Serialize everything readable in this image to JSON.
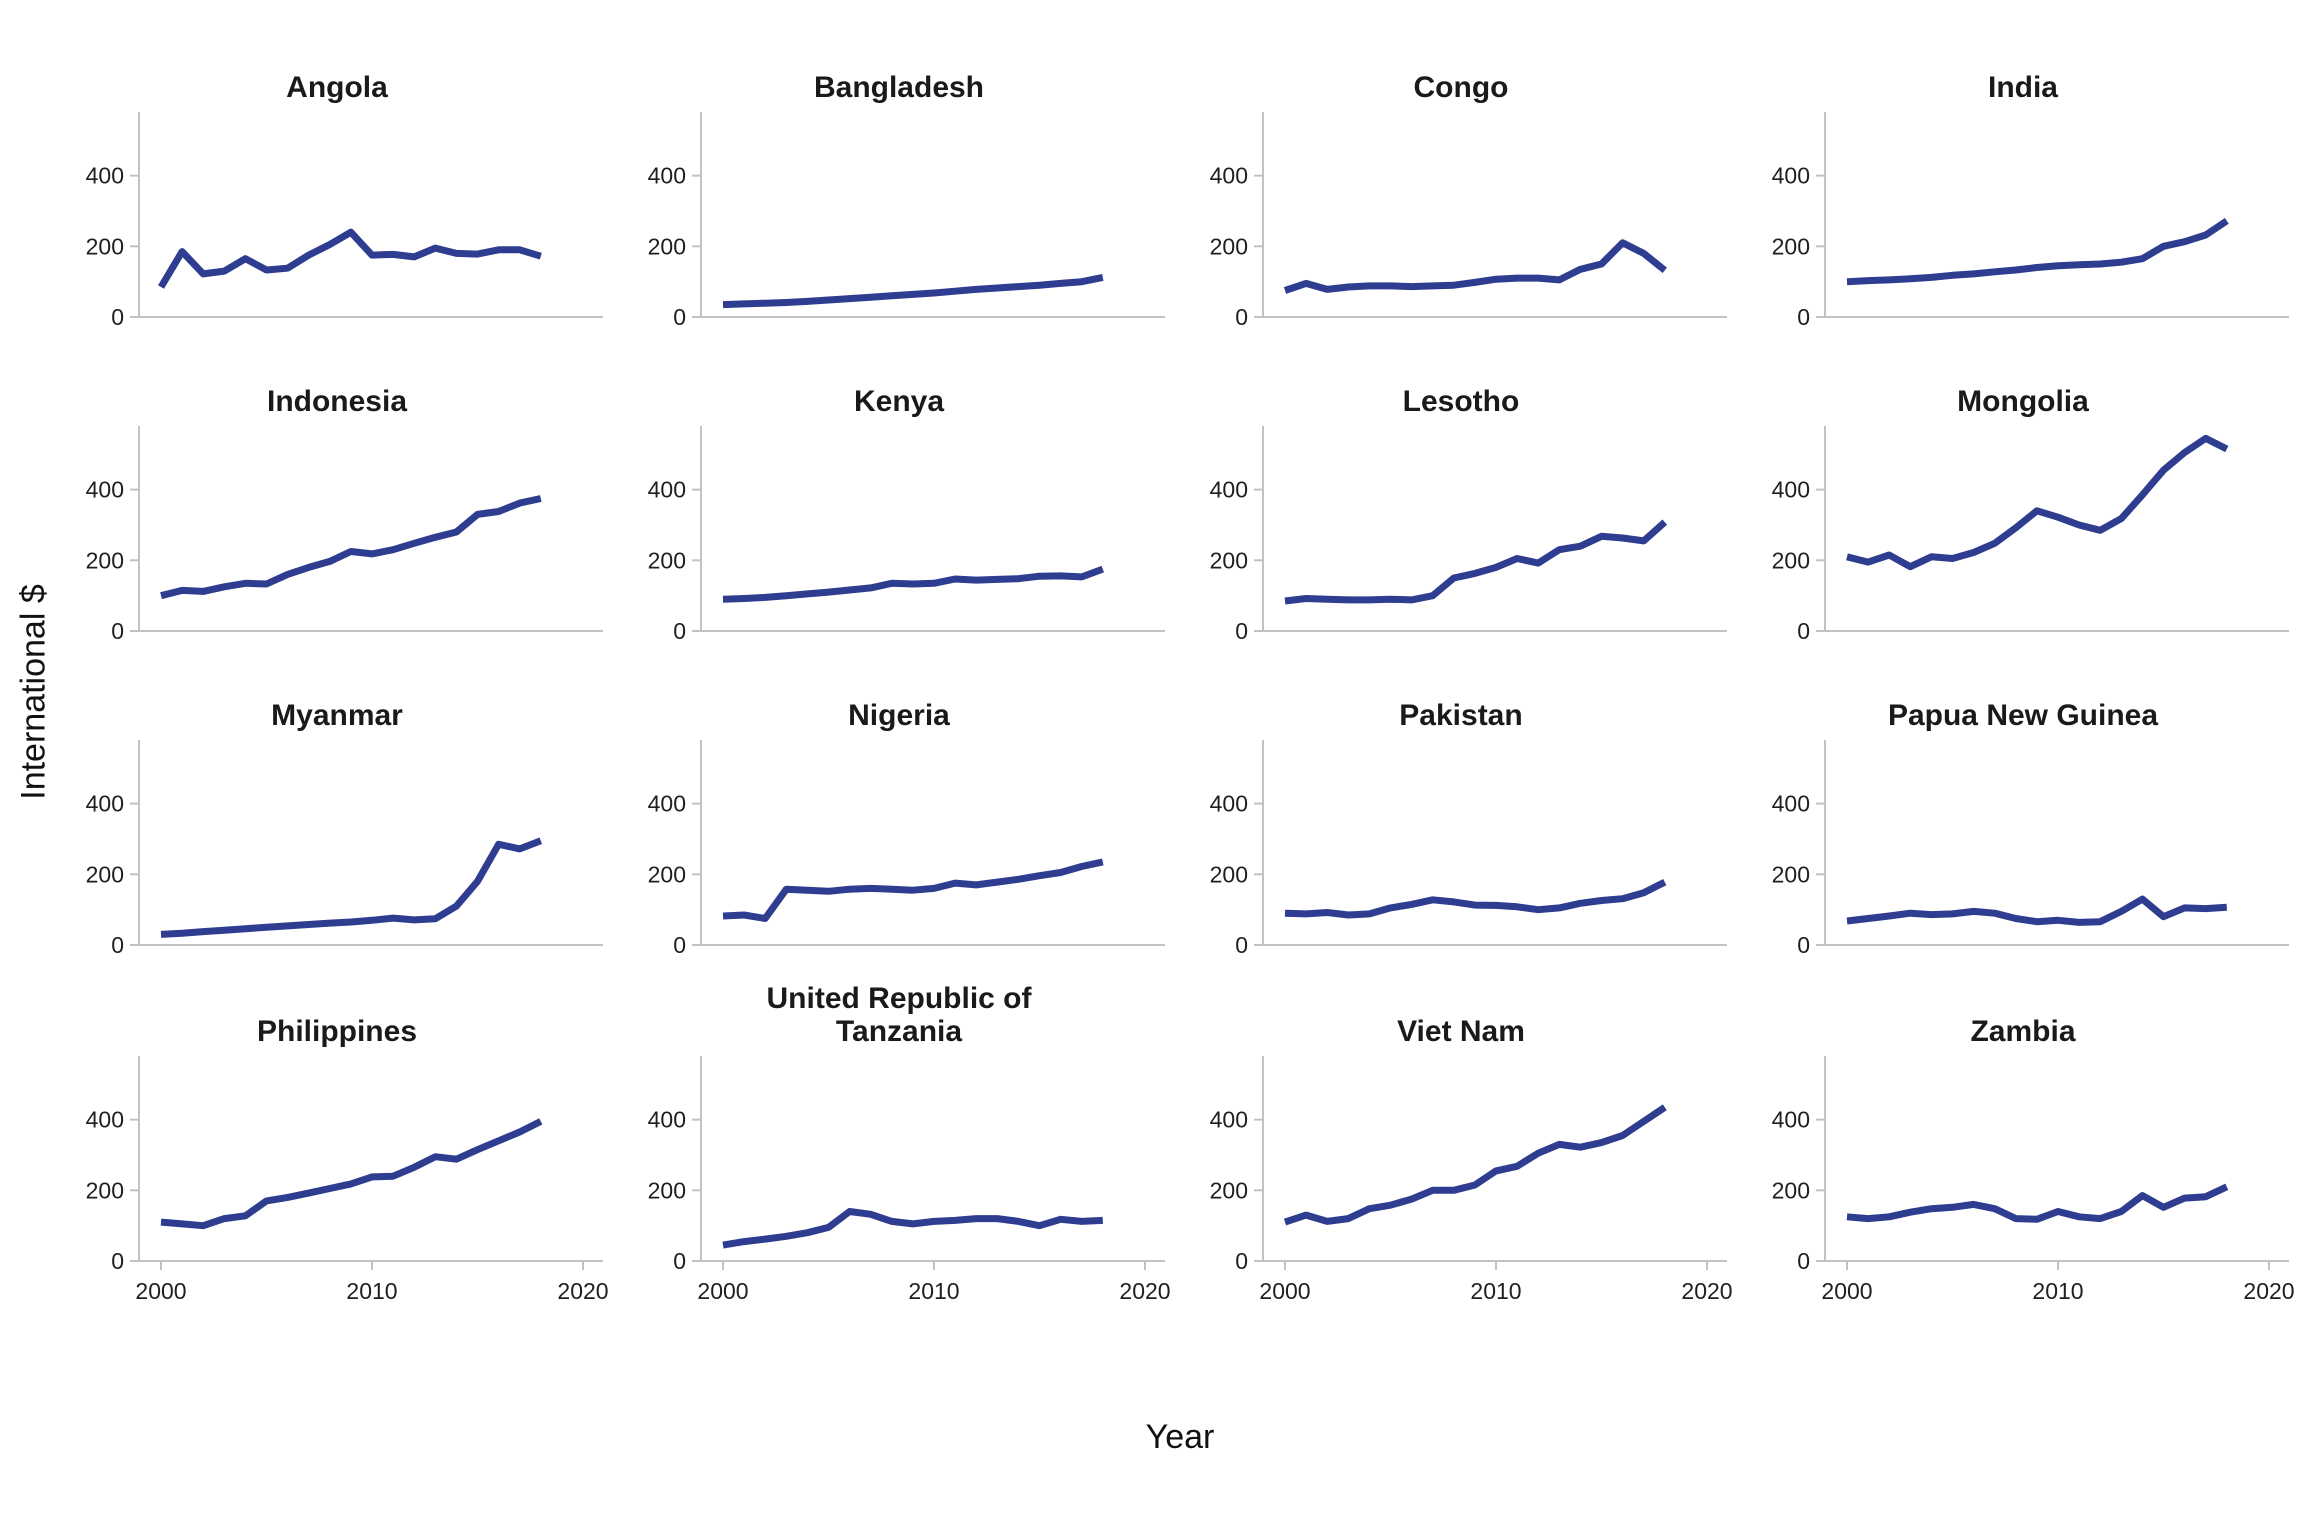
{
  "figure": {
    "ylabel": "International $",
    "xlabel": "Year"
  },
  "chart_data": {
    "type": "line",
    "title": "",
    "xlabel": "Year",
    "ylabel": "International $",
    "x": [
      2000,
      2001,
      2002,
      2003,
      2004,
      2005,
      2006,
      2007,
      2008,
      2009,
      2010,
      2011,
      2012,
      2013,
      2014,
      2015,
      2016,
      2017,
      2018
    ],
    "x_range": [
      2000,
      2020
    ],
    "y_range": [
      0,
      580
    ],
    "x_ticks": [
      2000,
      2010,
      2020
    ],
    "y_ticks": [
      0,
      200,
      400
    ],
    "grid": "off",
    "legend": "none",
    "line_color": "#2e3d90",
    "series": [
      {
        "name": "Angola",
        "values": [
          85,
          185,
          122,
          130,
          165,
          133,
          138,
          175,
          205,
          240,
          175,
          177,
          170,
          195,
          180,
          178,
          190,
          190,
          172
        ]
      },
      {
        "name": "Bangladesh",
        "values": [
          35,
          37,
          39,
          41,
          44,
          48,
          52,
          56,
          60,
          64,
          68,
          73,
          78,
          82,
          86,
          90,
          95,
          100,
          112
        ]
      },
      {
        "name": "Congo",
        "values": [
          75,
          95,
          78,
          85,
          88,
          88,
          86,
          88,
          90,
          98,
          107,
          110,
          110,
          105,
          135,
          150,
          210,
          180,
          132
        ]
      },
      {
        "name": "India",
        "values": [
          100,
          103,
          105,
          108,
          112,
          118,
          122,
          128,
          133,
          140,
          145,
          148,
          150,
          155,
          165,
          200,
          213,
          232,
          272
        ]
      },
      {
        "name": "Indonesia",
        "values": [
          100,
          115,
          112,
          125,
          135,
          133,
          160,
          180,
          197,
          225,
          218,
          230,
          248,
          265,
          280,
          330,
          338,
          362,
          375
        ]
      },
      {
        "name": "Kenya",
        "values": [
          90,
          92,
          95,
          100,
          105,
          110,
          116,
          122,
          135,
          133,
          135,
          147,
          144,
          146,
          148,
          155,
          156,
          153,
          175
        ]
      },
      {
        "name": "Lesotho",
        "values": [
          85,
          92,
          90,
          88,
          88,
          90,
          88,
          100,
          150,
          163,
          180,
          205,
          192,
          230,
          240,
          268,
          263,
          255,
          308
        ]
      },
      {
        "name": "Mongolia",
        "values": [
          210,
          195,
          215,
          182,
          210,
          205,
          222,
          248,
          292,
          340,
          322,
          300,
          285,
          318,
          385,
          455,
          505,
          545,
          515
        ]
      },
      {
        "name": "Myanmar",
        "values": [
          30,
          33,
          38,
          42,
          46,
          50,
          54,
          58,
          62,
          65,
          70,
          76,
          71,
          74,
          110,
          180,
          285,
          272,
          295
        ]
      },
      {
        "name": "Nigeria",
        "values": [
          82,
          85,
          75,
          158,
          155,
          152,
          158,
          160,
          158,
          155,
          160,
          175,
          170,
          178,
          186,
          196,
          205,
          222,
          235
        ]
      },
      {
        "name": "Pakistan",
        "values": [
          90,
          88,
          92,
          85,
          88,
          105,
          115,
          128,
          122,
          113,
          112,
          108,
          100,
          105,
          118,
          126,
          131,
          148,
          178
        ]
      },
      {
        "name": "Papua New Guinea",
        "values": [
          68,
          75,
          82,
          90,
          86,
          88,
          95,
          90,
          75,
          66,
          70,
          64,
          66,
          95,
          130,
          80,
          105,
          103,
          107
        ]
      },
      {
        "name": "Philippines",
        "values": [
          110,
          105,
          100,
          120,
          128,
          170,
          180,
          192,
          205,
          218,
          238,
          240,
          265,
          295,
          288,
          315,
          340,
          365,
          395
        ]
      },
      {
        "name": "United Republic of Tanzania",
        "values": [
          45,
          55,
          62,
          70,
          80,
          95,
          140,
          132,
          112,
          105,
          112,
          115,
          120,
          120,
          112,
          100,
          118,
          112,
          115
        ]
      },
      {
        "name": "Viet Nam",
        "values": [
          110,
          130,
          112,
          120,
          148,
          158,
          175,
          200,
          200,
          215,
          255,
          268,
          305,
          330,
          322,
          335,
          355,
          395,
          435
        ]
      },
      {
        "name": "Zambia",
        "values": [
          125,
          120,
          125,
          138,
          148,
          152,
          160,
          148,
          120,
          118,
          140,
          125,
          120,
          140,
          185,
          152,
          178,
          182,
          210
        ]
      }
    ]
  }
}
